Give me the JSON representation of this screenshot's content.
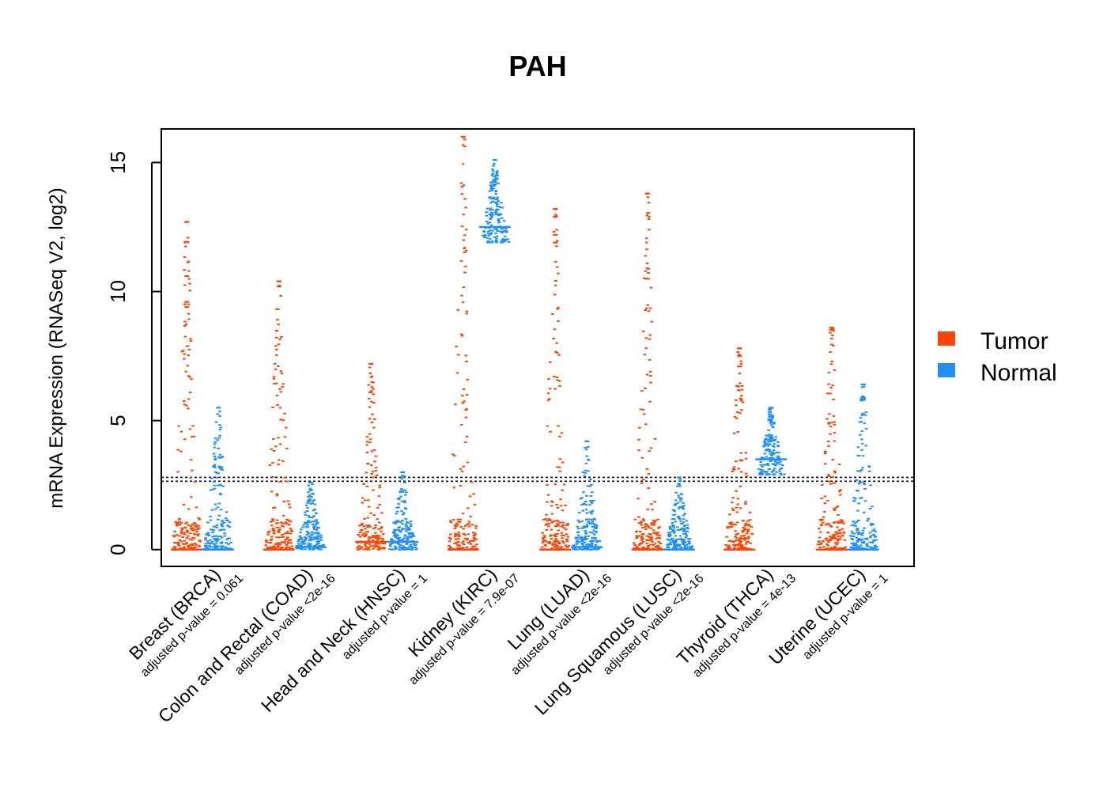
{
  "chart_data": {
    "type": "beeswarm",
    "title": "PAH",
    "ylabel": "mRNA Expression (RNASeq V2, log2)",
    "xlabel": "",
    "ylim": [
      -0.65,
      16.3
    ],
    "yticks": [
      0,
      5,
      10,
      15
    ],
    "grid": false,
    "legend_position": "right",
    "reference_lines": [
      2.65,
      2.8
    ],
    "series": [
      {
        "name": "Tumor",
        "color": "#FF4500"
      },
      {
        "name": "Normal",
        "color": "#1E90FF"
      }
    ],
    "categories": [
      {
        "label": "Breast (BRCA)",
        "pvalue": "adjusted p-value = 0.061",
        "tumor": {
          "max": 12.7,
          "median": 0.0,
          "outliers": [
            12.7,
            10.6,
            9.6,
            9.4
          ]
        },
        "normal": {
          "max": 5.5,
          "median": 0.0,
          "outliers": []
        }
      },
      {
        "label": "Colon and Rectal (COAD)",
        "pvalue": "adjusted p-value <2e-16",
        "tumor": {
          "max": 10.4,
          "median": 0.0,
          "outliers": [
            10.4,
            10.2
          ]
        },
        "normal": {
          "max": 2.6,
          "median": 0.1,
          "outliers": []
        }
      },
      {
        "label": "Head and Neck (HNSC)",
        "pvalue": "adjusted p-value = 1",
        "tumor": {
          "max": 7.2,
          "median": 0.3,
          "outliers": [
            7.2
          ]
        },
        "normal": {
          "max": 3.0,
          "median": 0.3,
          "outliers": []
        }
      },
      {
        "label": "Kidney (KIRC)",
        "pvalue": "adjusted p-value = 7.9e-07",
        "tumor": {
          "max": 16.0,
          "median": 0.0,
          "outliers": []
        },
        "normal": {
          "max": 15.1,
          "median": 12.5,
          "outliers": []
        }
      },
      {
        "label": "Lung (LUAD)",
        "pvalue": "adjusted p-value <2e-16",
        "tumor": {
          "max": 13.2,
          "median": 0.0,
          "outliers": [
            13.2,
            12.9,
            12.2,
            11.9
          ]
        },
        "normal": {
          "max": 4.2,
          "median": 0.1,
          "outliers": []
        }
      },
      {
        "label": "Lung Squamous (LUSC)",
        "pvalue": "adjusted p-value <2e-16",
        "tumor": {
          "max": 13.8,
          "median": 0.0,
          "outliers": [
            13.8,
            10.5
          ]
        },
        "normal": {
          "max": 2.8,
          "median": 0.0,
          "outliers": []
        }
      },
      {
        "label": "Thyroid (THCA)",
        "pvalue": "adjusted p-value = 4e-13",
        "tumor": {
          "max": 7.8,
          "median": 0.0,
          "outliers": [
            7.8,
            7.5,
            7.1
          ]
        },
        "normal": {
          "max": 5.5,
          "median": 3.5,
          "outliers": []
        }
      },
      {
        "label": "Uterine (UCEC)",
        "pvalue": "adjusted p-value = 1",
        "tumor": {
          "max": 8.6,
          "median": 0.0,
          "outliers": [
            8.6
          ]
        },
        "normal": {
          "max": 6.4,
          "median": 0.0,
          "outliers": [
            6.4,
            5.9
          ]
        }
      }
    ]
  }
}
